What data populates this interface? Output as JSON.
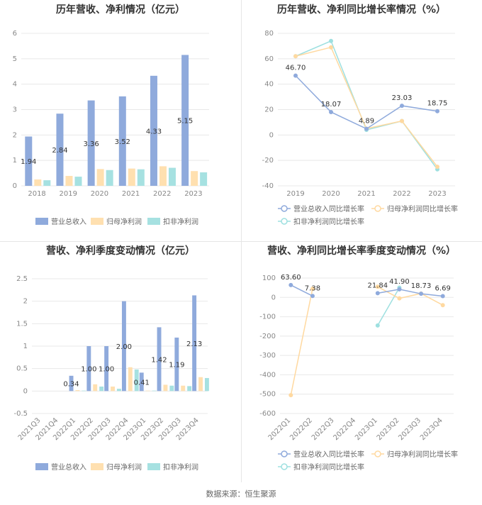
{
  "source": "数据来源：恒生聚源",
  "colors": {
    "revenue": "#8faadc",
    "parent_profit": "#ffe0b0",
    "deducted_profit": "#a6e1e1",
    "grid": "#e8e8e8",
    "axis_text": "#888888"
  },
  "chart_data": [
    {
      "type": "bar",
      "title": "历年营收、净利情况（亿元）",
      "categories": [
        "2018",
        "2019",
        "2020",
        "2021",
        "2022",
        "2023"
      ],
      "ylim": [
        0,
        6
      ],
      "yticks": [
        "0",
        "1",
        "2",
        "3",
        "4",
        "5",
        "6"
      ],
      "series": [
        {
          "name": "营业总收入",
          "values": [
            1.94,
            2.84,
            3.36,
            3.52,
            4.33,
            5.15
          ],
          "labels": [
            "1.94",
            "2.84",
            "3.36",
            "3.52",
            "4.33",
            "5.15"
          ]
        },
        {
          "name": "归母净利润",
          "values": [
            0.25,
            0.39,
            0.66,
            0.68,
            0.77,
            0.58
          ]
        },
        {
          "name": "扣非净利润",
          "values": [
            0.22,
            0.36,
            0.62,
            0.65,
            0.71,
            0.53
          ]
        }
      ],
      "legend": "bottom"
    },
    {
      "type": "line",
      "title": "历年营收、净利同比增长率情况（%）",
      "categories": [
        "2019",
        "2020",
        "2021",
        "2022",
        "2023"
      ],
      "ylim": [
        -40,
        80
      ],
      "yticks": [
        "-40",
        "-20",
        "0",
        "20",
        "40",
        "60",
        "80"
      ],
      "series": [
        {
          "name": "营业总收入同比增长率",
          "values": [
            46.7,
            18.07,
            4.89,
            23.03,
            18.75
          ],
          "labels": [
            "46.70",
            "18.07",
            "4.89",
            "23.03",
            "18.75"
          ]
        },
        {
          "name": "归母净利润同比增长率",
          "values": [
            62,
            69,
            5,
            11,
            -25
          ]
        },
        {
          "name": "扣非净利润同比增长率",
          "values": [
            62,
            74,
            4,
            11,
            -27
          ]
        }
      ],
      "legend": "bottom"
    },
    {
      "type": "bar",
      "title": "营收、净利季度变动情况（亿元）",
      "categories": [
        "2021Q3",
        "2021Q4",
        "2022Q1",
        "2022Q2",
        "2022Q3",
        "2022Q4",
        "2023Q1",
        "2023Q2",
        "2023Q3",
        "2023Q4"
      ],
      "ylim": [
        -0.5,
        2.5
      ],
      "yticks": [
        "-0.5",
        "0",
        "0.5",
        "1",
        "1.5",
        "2",
        "2.5"
      ],
      "series": [
        {
          "name": "营业总收入",
          "values": [
            null,
            null,
            0.34,
            1.0,
            1.0,
            2.0,
            0.41,
            1.42,
            1.19,
            2.13
          ],
          "labels": [
            "",
            "",
            "0.34",
            "1.00",
            "1.00",
            "2.00",
            "0.41",
            "1.42",
            "1.19",
            "2.13"
          ]
        },
        {
          "name": "归母净利润",
          "values": [
            null,
            null,
            0.02,
            0.15,
            0.1,
            0.53,
            0.01,
            0.14,
            0.12,
            0.31
          ]
        },
        {
          "name": "扣非净利润",
          "values": [
            null,
            null,
            0.01,
            0.1,
            0.05,
            0.48,
            0.01,
            0.12,
            0.11,
            0.29
          ]
        }
      ],
      "legend": "bottom"
    },
    {
      "type": "line",
      "title": "营收、净利同比增长率季度变动情况（%）",
      "categories": [
        "2022Q1",
        "2022Q2",
        "2022Q3",
        "2022Q4",
        "2023Q1",
        "2023Q2",
        "2023Q3",
        "2023Q4"
      ],
      "ylim": [
        -600,
        100
      ],
      "yticks": [
        "-600",
        "-500",
        "-400",
        "-300",
        "-200",
        "-100",
        "0",
        "100"
      ],
      "series": [
        {
          "name": "营业总收入同比增长率",
          "values": [
            63.6,
            7.38,
            null,
            null,
            21.84,
            41.9,
            18.73,
            6.69
          ],
          "labels": [
            "63.60",
            "7.38",
            "",
            "",
            "21.84",
            "41.90",
            "18.73",
            "6.69"
          ]
        },
        {
          "name": "归母净利润同比增长率",
          "values": [
            -505,
            45,
            null,
            null,
            55,
            -5,
            20,
            -40
          ]
        },
        {
          "name": "扣非净利润同比增长率",
          "values": [
            null,
            null,
            null,
            null,
            -145,
            50,
            null,
            null
          ]
        }
      ],
      "legend": "bottom"
    }
  ]
}
